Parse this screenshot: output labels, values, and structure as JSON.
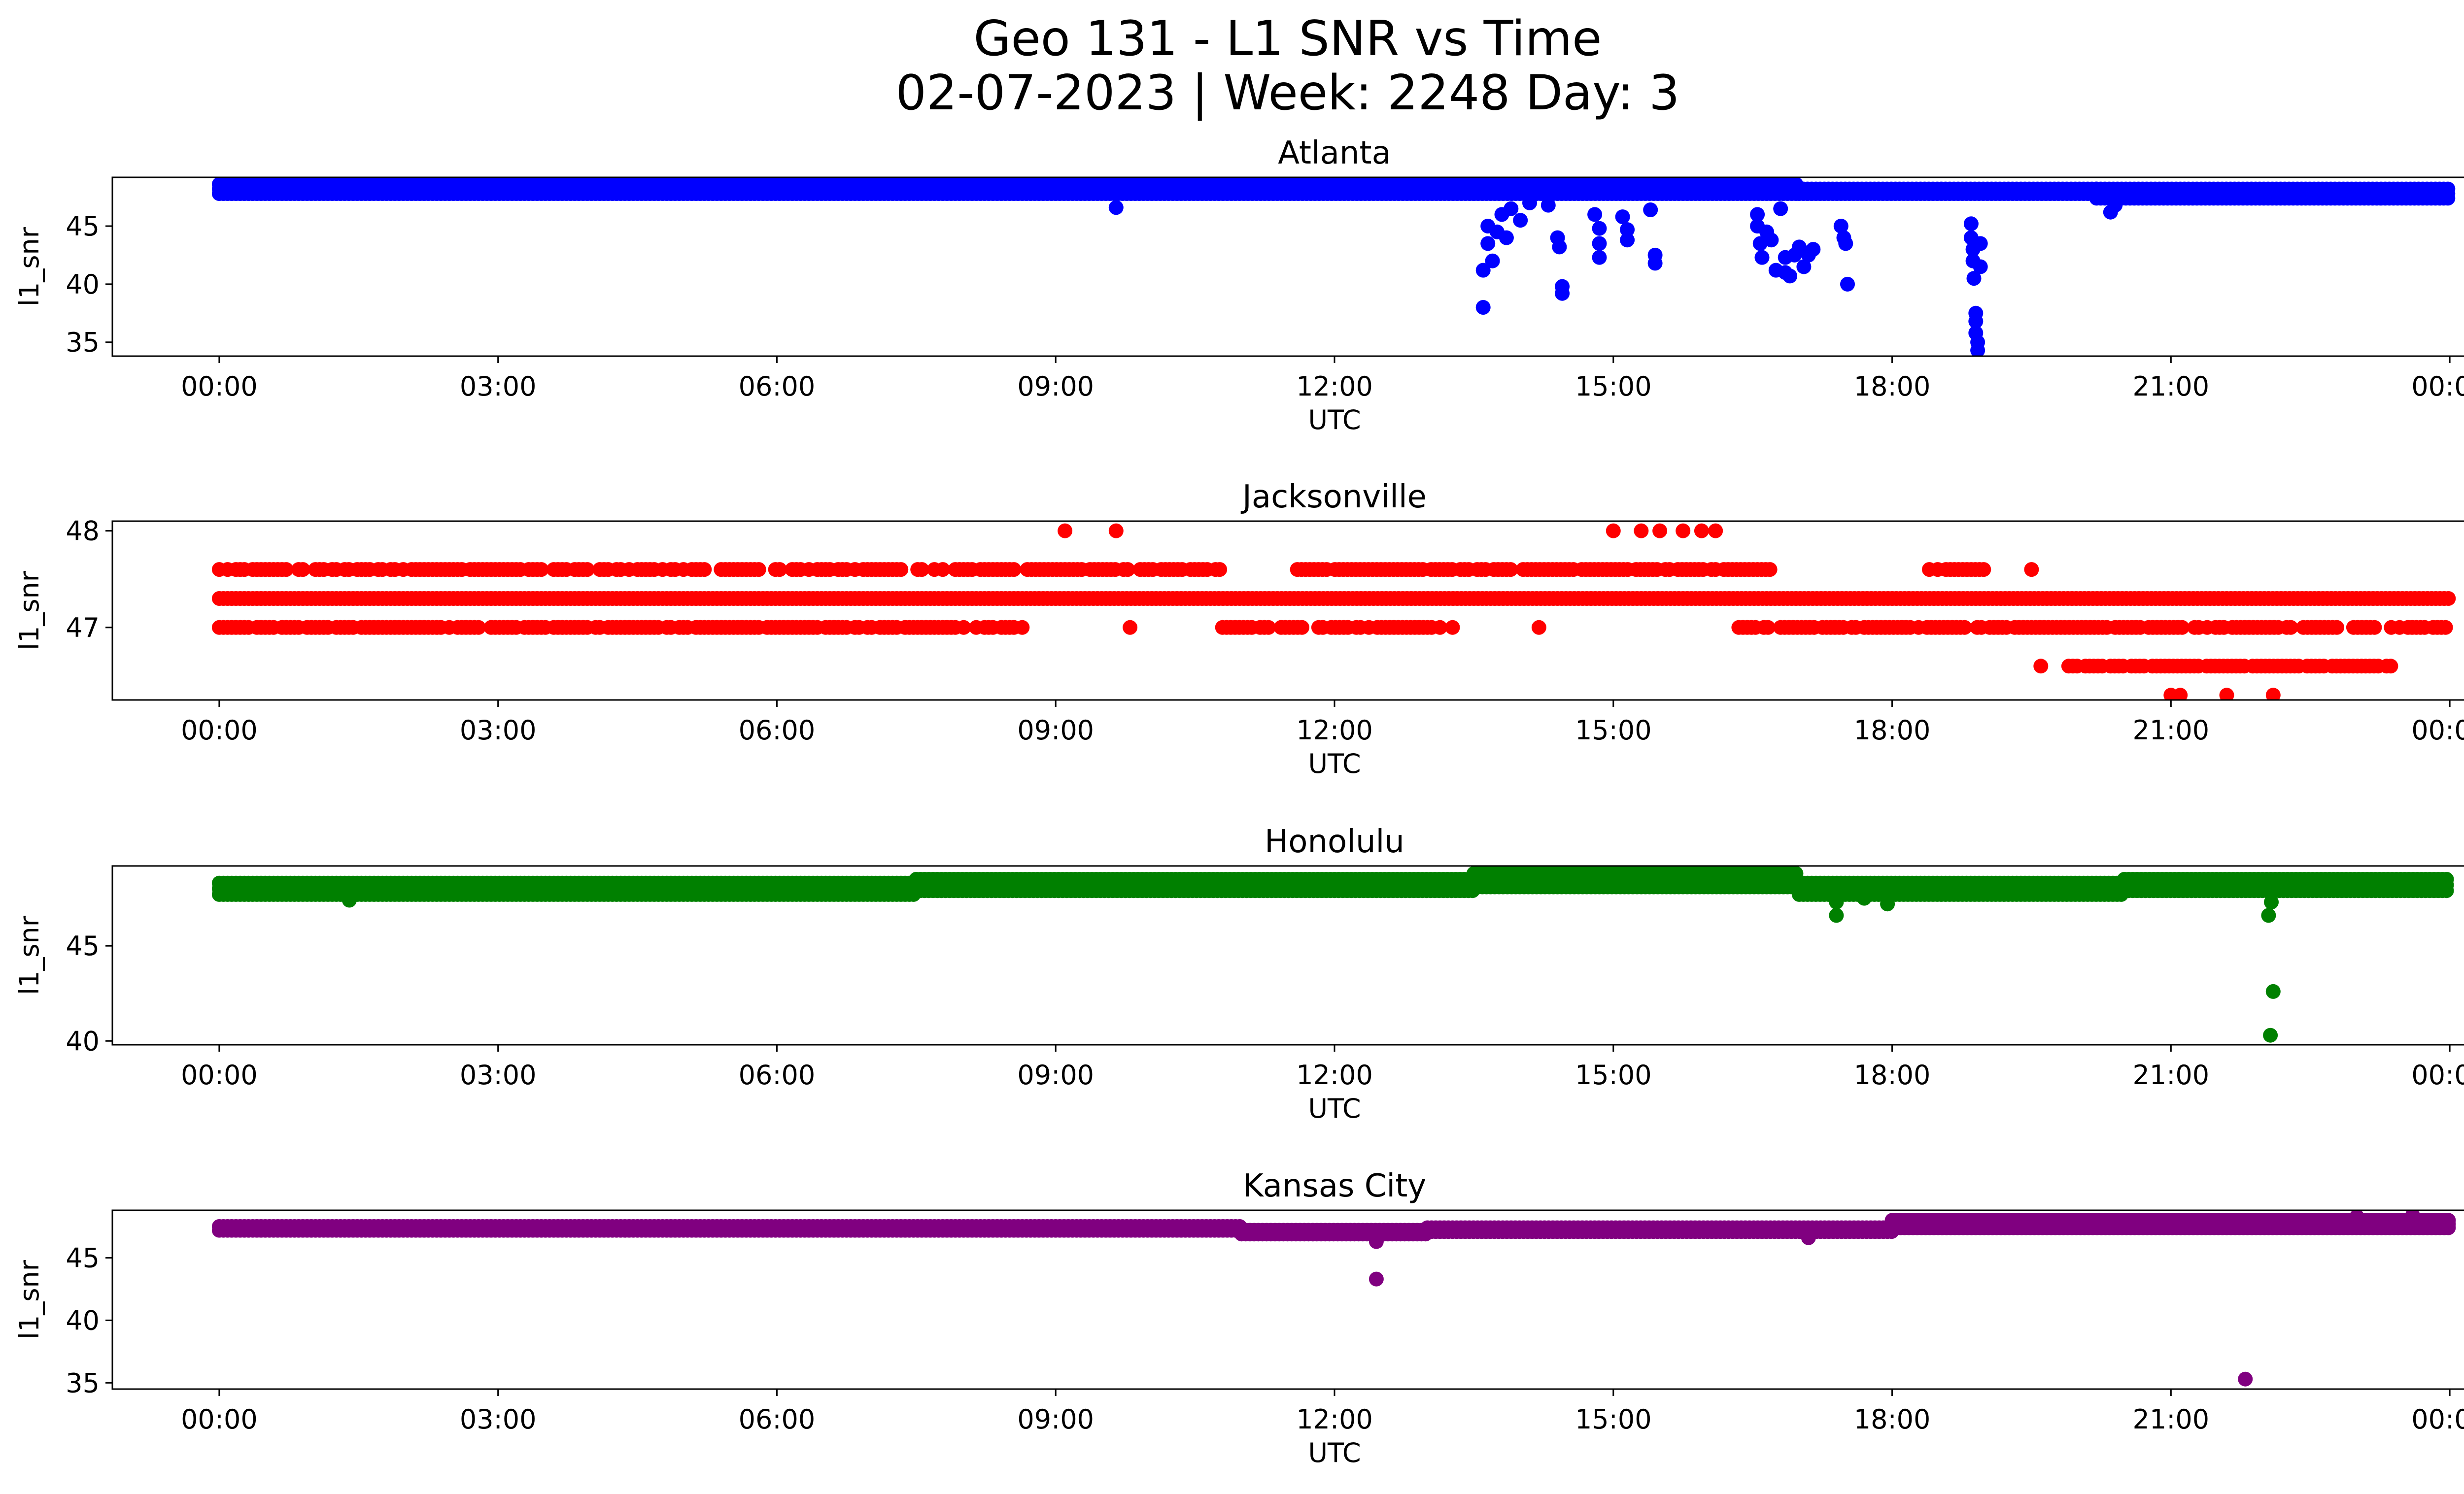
{
  "suptitle_line1": "Geo 131 - L1 SNR vs Time",
  "suptitle_line2": "02-07-2023 | Week: 2248 Day: 3",
  "chart_data": [
    {
      "type": "scatter",
      "title": "Atlanta",
      "color": "#0000ff",
      "xlabel": "UTC",
      "ylabel": "l1_snr",
      "xlim_hours": [
        -1.15,
        25.15
      ],
      "ylim": [
        33.8,
        49.2
      ],
      "xticks": [
        "00:00",
        "03:00",
        "06:00",
        "09:00",
        "12:00",
        "15:00",
        "18:00",
        "21:00",
        "00:00"
      ],
      "yticks": [
        35,
        40,
        45
      ],
      "bands": [
        {
          "from_hour": 0,
          "to_hour": 13.5,
          "y_values": [
            47.8,
            48.2,
            48.6
          ]
        },
        {
          "from_hour": 13.5,
          "to_hour": 17.0,
          "y_values": [
            47.8,
            48.2,
            48.6
          ]
        },
        {
          "from_hour": 17.0,
          "to_hour": 20.2,
          "y_values": [
            47.8,
            48.2
          ]
        },
        {
          "from_hour": 20.2,
          "to_hour": 24.0,
          "y_values": [
            47.4,
            47.8,
            48.2
          ]
        }
      ],
      "outliers": [
        {
          "hour": 9.65,
          "snr": 46.6
        },
        {
          "hour": 13.6,
          "snr": 38.0
        },
        {
          "hour": 13.6,
          "snr": 41.2
        },
        {
          "hour": 13.65,
          "snr": 43.5
        },
        {
          "hour": 13.65,
          "snr": 45.0
        },
        {
          "hour": 13.7,
          "snr": 42.0
        },
        {
          "hour": 13.75,
          "snr": 44.5
        },
        {
          "hour": 13.8,
          "snr": 46.0
        },
        {
          "hour": 13.85,
          "snr": 44.0
        },
        {
          "hour": 13.9,
          "snr": 46.5
        },
        {
          "hour": 14.0,
          "snr": 45.5
        },
        {
          "hour": 14.1,
          "snr": 47.0
        },
        {
          "hour": 14.3,
          "snr": 46.8
        },
        {
          "hour": 14.4,
          "snr": 44.0
        },
        {
          "hour": 14.42,
          "snr": 43.2
        },
        {
          "hour": 14.45,
          "snr": 39.2
        },
        {
          "hour": 14.45,
          "snr": 39.8
        },
        {
          "hour": 14.8,
          "snr": 46.0
        },
        {
          "hour": 14.85,
          "snr": 44.8
        },
        {
          "hour": 14.85,
          "snr": 43.5
        },
        {
          "hour": 14.85,
          "snr": 42.3
        },
        {
          "hour": 15.1,
          "snr": 45.8
        },
        {
          "hour": 15.15,
          "snr": 44.7
        },
        {
          "hour": 15.15,
          "snr": 43.8
        },
        {
          "hour": 15.4,
          "snr": 46.4
        },
        {
          "hour": 15.45,
          "snr": 42.5
        },
        {
          "hour": 15.45,
          "snr": 41.8
        },
        {
          "hour": 16.55,
          "snr": 46.0
        },
        {
          "hour": 16.55,
          "snr": 45.0
        },
        {
          "hour": 16.58,
          "snr": 43.5
        },
        {
          "hour": 16.6,
          "snr": 42.3
        },
        {
          "hour": 16.65,
          "snr": 44.5
        },
        {
          "hour": 16.7,
          "snr": 43.8
        },
        {
          "hour": 16.75,
          "snr": 41.2
        },
        {
          "hour": 16.8,
          "snr": 46.5
        },
        {
          "hour": 16.85,
          "snr": 42.3
        },
        {
          "hour": 16.85,
          "snr": 41.0
        },
        {
          "hour": 16.9,
          "snr": 40.7
        },
        {
          "hour": 16.95,
          "snr": 42.5
        },
        {
          "hour": 17.0,
          "snr": 43.2
        },
        {
          "hour": 17.05,
          "snr": 41.5
        },
        {
          "hour": 17.1,
          "snr": 42.5
        },
        {
          "hour": 17.15,
          "snr": 43.0
        },
        {
          "hour": 17.45,
          "snr": 45.0
        },
        {
          "hour": 17.48,
          "snr": 44.0
        },
        {
          "hour": 17.5,
          "snr": 43.5
        },
        {
          "hour": 17.52,
          "snr": 40.0
        },
        {
          "hour": 18.85,
          "snr": 45.2
        },
        {
          "hour": 18.85,
          "snr": 44.0
        },
        {
          "hour": 18.87,
          "snr": 43.0
        },
        {
          "hour": 18.87,
          "snr": 42.0
        },
        {
          "hour": 18.88,
          "snr": 40.5
        },
        {
          "hour": 18.9,
          "snr": 37.5
        },
        {
          "hour": 18.9,
          "snr": 36.8
        },
        {
          "hour": 18.9,
          "snr": 35.8
        },
        {
          "hour": 18.92,
          "snr": 35.0
        },
        {
          "hour": 18.92,
          "snr": 34.3
        },
        {
          "hour": 18.95,
          "snr": 41.5
        },
        {
          "hour": 18.95,
          "snr": 43.5
        },
        {
          "hour": 20.35,
          "snr": 46.2
        },
        {
          "hour": 20.4,
          "snr": 46.8
        }
      ]
    },
    {
      "type": "scatter",
      "title": "Jacksonville",
      "color": "#ff0000",
      "xlabel": "UTC",
      "ylabel": "l1_snr",
      "xlim_hours": [
        -1.15,
        25.15
      ],
      "ylim": [
        46.25,
        48.1
      ],
      "xticks": [
        "00:00",
        "03:00",
        "06:00",
        "09:00",
        "12:00",
        "15:00",
        "18:00",
        "21:00",
        "00:00"
      ],
      "yticks": [
        47,
        48
      ],
      "bands": [
        {
          "from_hour": 0,
          "to_hour": 24.0,
          "y_values": [
            47.3
          ]
        },
        {
          "from_hour": 0,
          "to_hour": 8.65,
          "y_values": [
            47.0,
            47.6
          ],
          "density": 0.78
        },
        {
          "from_hour": 8.65,
          "to_hour": 10.8,
          "y_values": [
            47.6
          ],
          "density": 0.8
        },
        {
          "from_hour": 10.75,
          "to_hour": 13.3,
          "y_values": [
            47.0
          ],
          "density": 0.75
        },
        {
          "from_hour": 11.6,
          "to_hour": 16.7,
          "y_values": [
            47.6
          ],
          "density": 0.85
        },
        {
          "from_hour": 16.35,
          "to_hour": 24.0,
          "y_values": [
            47.0
          ],
          "density": 0.85
        },
        {
          "from_hour": 18.4,
          "to_hour": 19.0,
          "y_values": [
            47.6
          ],
          "density": 0.9
        },
        {
          "from_hour": 19.9,
          "to_hour": 23.4,
          "y_values": [
            46.6
          ],
          "density": 0.9
        }
      ],
      "outliers": [
        {
          "hour": 9.1,
          "snr": 48.0
        },
        {
          "hour": 9.65,
          "snr": 48.0
        },
        {
          "hour": 9.8,
          "snr": 47.0
        },
        {
          "hour": 14.2,
          "snr": 47.0
        },
        {
          "hour": 15.0,
          "snr": 48.0
        },
        {
          "hour": 15.3,
          "snr": 48.0
        },
        {
          "hour": 15.5,
          "snr": 48.0
        },
        {
          "hour": 15.75,
          "snr": 48.0
        },
        {
          "hour": 15.95,
          "snr": 48.0
        },
        {
          "hour": 16.1,
          "snr": 48.0
        },
        {
          "hour": 19.5,
          "snr": 47.6
        },
        {
          "hour": 19.6,
          "snr": 46.6
        },
        {
          "hour": 21.0,
          "snr": 46.3
        },
        {
          "hour": 21.1,
          "snr": 46.3
        },
        {
          "hour": 21.6,
          "snr": 46.3
        },
        {
          "hour": 22.1,
          "snr": 46.3
        }
      ]
    },
    {
      "type": "scatter",
      "title": "Honolulu",
      "color": "#008000",
      "xlabel": "UTC",
      "ylabel": "l1_snr",
      "xlim_hours": [
        -1.15,
        25.15
      ],
      "ylim": [
        39.8,
        49.2
      ],
      "xticks": [
        "00:00",
        "03:00",
        "06:00",
        "09:00",
        "12:00",
        "15:00",
        "18:00",
        "21:00",
        "00:00"
      ],
      "yticks": [
        40,
        45
      ],
      "bands": [
        {
          "from_hour": 0,
          "to_hour": 7.5,
          "y_values": [
            47.7,
            48.0,
            48.3
          ]
        },
        {
          "from_hour": 7.5,
          "to_hour": 13.5,
          "y_values": [
            47.9,
            48.2,
            48.5
          ]
        },
        {
          "from_hour": 13.5,
          "to_hour": 17.0,
          "y_values": [
            48.1,
            48.4,
            48.8
          ]
        },
        {
          "from_hour": 17.0,
          "to_hour": 20.5,
          "y_values": [
            47.7,
            48.0,
            48.3
          ]
        },
        {
          "from_hour": 20.5,
          "to_hour": 24.0,
          "y_values": [
            47.9,
            48.2,
            48.5
          ]
        }
      ],
      "outliers": [
        {
          "hour": 1.4,
          "snr": 47.4
        },
        {
          "hour": 17.4,
          "snr": 46.6
        },
        {
          "hour": 17.4,
          "snr": 47.3
        },
        {
          "hour": 17.7,
          "snr": 47.5
        },
        {
          "hour": 17.95,
          "snr": 47.2
        },
        {
          "hour": 22.05,
          "snr": 46.6
        },
        {
          "hour": 22.08,
          "snr": 47.3
        },
        {
          "hour": 22.1,
          "snr": 42.6
        },
        {
          "hour": 22.07,
          "snr": 40.3
        }
      ]
    },
    {
      "type": "scatter",
      "title": "Kansas City",
      "color": "#800080",
      "xlabel": "UTC",
      "ylabel": "l1_snr",
      "xlim_hours": [
        -1.15,
        25.15
      ],
      "ylim": [
        34.5,
        48.8
      ],
      "xticks": [
        "00:00",
        "03:00",
        "06:00",
        "09:00",
        "12:00",
        "15:00",
        "18:00",
        "21:00",
        "00:00"
      ],
      "yticks": [
        35,
        40,
        45
      ],
      "bands": [
        {
          "from_hour": 0,
          "to_hour": 11.0,
          "y_values": [
            47.2,
            47.5
          ]
        },
        {
          "from_hour": 11.0,
          "to_hour": 13.0,
          "y_values": [
            46.9,
            47.2
          ]
        },
        {
          "from_hour": 13.0,
          "to_hour": 18.0,
          "y_values": [
            47.1,
            47.4
          ]
        },
        {
          "from_hour": 18.0,
          "to_hour": 24.0,
          "y_values": [
            47.4,
            47.7,
            48.0
          ]
        }
      ],
      "outliers": [
        {
          "hour": 12.45,
          "snr": 46.3
        },
        {
          "hour": 12.45,
          "snr": 43.3
        },
        {
          "hour": 17.1,
          "snr": 46.6
        },
        {
          "hour": 21.8,
          "snr": 35.3
        },
        {
          "hour": 23.0,
          "snr": 48.3
        },
        {
          "hour": 23.6,
          "snr": 48.4
        }
      ]
    }
  ]
}
